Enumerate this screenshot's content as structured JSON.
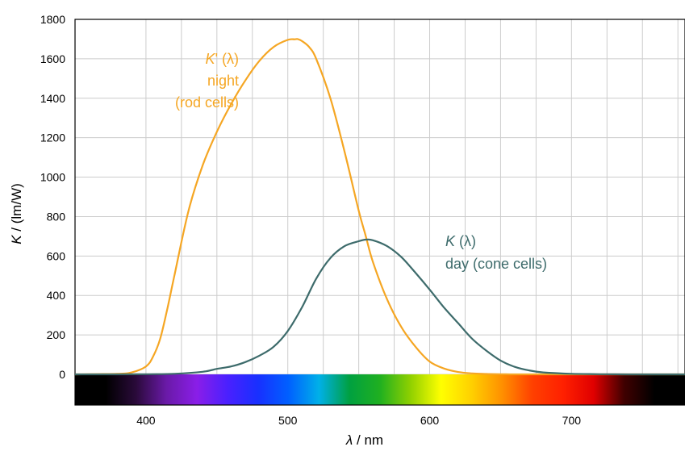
{
  "chart_data": {
    "type": "line",
    "xlabel_symbol": "λ",
    "xlabel_unit": " / nm",
    "ylabel_symbol": "K",
    "ylabel_unit": " / (lm/W)",
    "xlim": [
      350,
      780
    ],
    "ylim": [
      0,
      1800
    ],
    "x_ticks": [
      400,
      500,
      600,
      700
    ],
    "y_ticks": [
      0,
      200,
      400,
      600,
      800,
      1000,
      1200,
      1400,
      1600,
      1800
    ],
    "grid": true,
    "colors": {
      "night": "#f5a623",
      "day": "#3d6b6b",
      "grid": "#cccccc"
    },
    "spectrum_strip": {
      "x_range": [
        350,
        780
      ],
      "colors": [
        "#000000",
        "#000000",
        "#2a0a3a",
        "#6a1aa8",
        "#8a1ee8",
        "#4a20ff",
        "#1830ff",
        "#0060ff",
        "#00b0e8",
        "#00a040",
        "#20b020",
        "#90d000",
        "#ffff00",
        "#ffd000",
        "#ff9000",
        "#ff4000",
        "#ff2000",
        "#e00000",
        "#400000",
        "#000000",
        "#000000"
      ]
    },
    "series": [
      {
        "key": "night",
        "label_symbol": "K",
        "label_rest": "' (λ)",
        "label_line2": "night",
        "label_line3": "(rod cells)",
        "x": [
          350,
          380,
          390,
          400,
          405,
          410,
          415,
          420,
          430,
          440,
          450,
          460,
          470,
          480,
          490,
          500,
          505,
          507,
          510,
          515,
          520,
          530,
          540,
          550,
          555,
          560,
          570,
          580,
          590,
          600,
          610,
          620,
          630,
          640,
          650,
          660,
          680,
          700,
          750,
          780
        ],
        "values": [
          0,
          3,
          10,
          40,
          90,
          180,
          330,
          500,
          830,
          1060,
          1230,
          1370,
          1490,
          1590,
          1660,
          1696,
          1699,
          1700,
          1690,
          1660,
          1600,
          1400,
          1130,
          830,
          700,
          570,
          380,
          240,
          140,
          65,
          30,
          12,
          5,
          2,
          1,
          0,
          0,
          0,
          0,
          0
        ]
      },
      {
        "key": "day",
        "label_symbol": "K",
        "label_rest": " (λ)",
        "label_line2": "day (cone cells)",
        "x": [
          350,
          380,
          400,
          420,
          440,
          450,
          460,
          470,
          480,
          490,
          500,
          510,
          520,
          530,
          540,
          550,
          555,
          560,
          570,
          580,
          590,
          600,
          610,
          620,
          630,
          640,
          650,
          660,
          670,
          680,
          700,
          720,
          750,
          780
        ],
        "values": [
          0,
          0,
          1,
          3,
          13,
          28,
          40,
          62,
          95,
          140,
          220,
          340,
          485,
          590,
          650,
          675,
          683,
          680,
          650,
          595,
          515,
          430,
          340,
          260,
          180,
          120,
          70,
          38,
          20,
          10,
          3,
          1,
          0,
          0
        ]
      }
    ]
  }
}
